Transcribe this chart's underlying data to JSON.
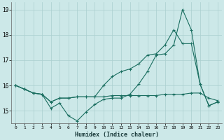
{
  "xlabel": "Humidex (Indice chaleur)",
  "x_values": [
    0,
    1,
    2,
    3,
    4,
    5,
    6,
    7,
    8,
    9,
    10,
    11,
    12,
    13,
    14,
    15,
    16,
    17,
    18,
    19,
    20,
    21,
    22,
    23
  ],
  "line1": [
    16.0,
    15.85,
    15.7,
    15.65,
    15.1,
    15.3,
    14.8,
    14.6,
    14.95,
    15.25,
    15.45,
    15.5,
    15.5,
    15.65,
    16.05,
    16.55,
    17.2,
    17.25,
    17.6,
    19.0,
    18.2,
    16.05,
    15.2,
    15.35
  ],
  "line2": [
    16.0,
    15.85,
    15.7,
    15.65,
    15.35,
    15.5,
    15.5,
    15.55,
    15.55,
    15.55,
    15.55,
    15.6,
    15.6,
    15.6,
    15.6,
    15.6,
    15.6,
    15.65,
    15.65,
    15.65,
    15.7,
    15.7,
    15.5,
    15.4
  ],
  "line3": [
    16.0,
    15.85,
    15.7,
    15.65,
    15.35,
    15.5,
    15.5,
    15.55,
    15.55,
    15.55,
    16.0,
    16.35,
    16.55,
    16.65,
    16.85,
    17.2,
    17.25,
    17.6,
    18.2,
    17.65,
    17.65,
    16.05,
    15.2,
    15.35
  ],
  "line_color": "#1a6e60",
  "bg_color": "#cce8e8",
  "grid_color": "#aacfcf",
  "grid_color_minor": "#bbdede",
  "ylim": [
    14.5,
    19.3
  ],
  "yticks": [
    15,
    16,
    17,
    18,
    19
  ],
  "xlim": [
    -0.5,
    23.5
  ]
}
